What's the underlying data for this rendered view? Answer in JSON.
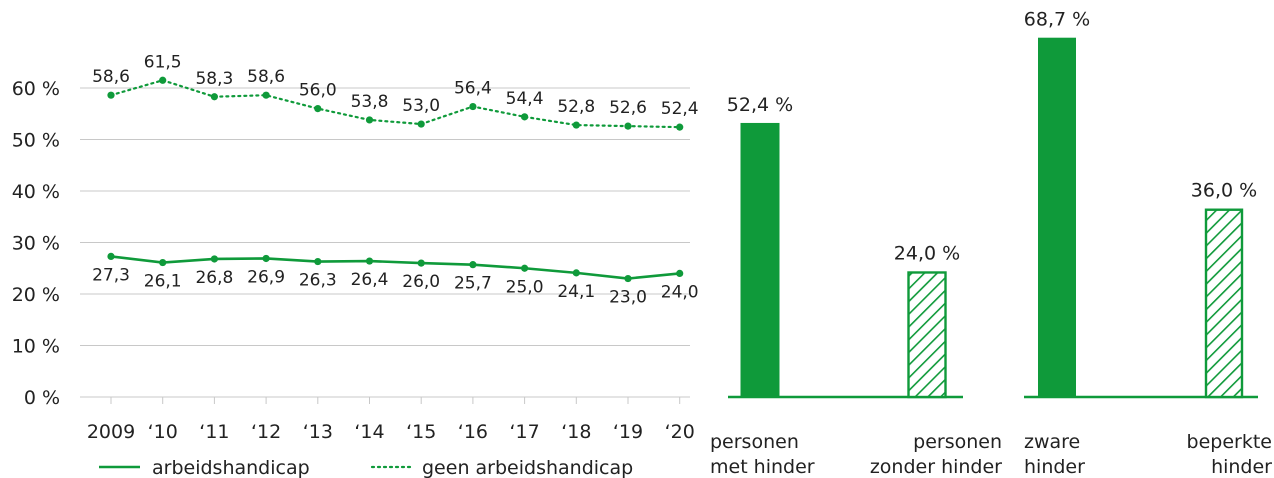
{
  "colors": {
    "primary": "#0f9a3a",
    "grid": "#c8c8c8",
    "text": "#222222"
  },
  "chart_data": [
    {
      "type": "line",
      "x_labels": [
        "2009",
        "‘10",
        "‘11",
        "‘12",
        "‘13",
        "‘14",
        "‘15",
        "‘16",
        "‘17",
        "‘18",
        "‘19",
        "‘20"
      ],
      "y_ticks": [
        "0 %",
        "10 %",
        "20 %",
        "30 %",
        "40 %",
        "50 %",
        "60 %"
      ],
      "ylim": [
        0,
        60
      ],
      "grid": true,
      "legend_position": "bottom",
      "series": [
        {
          "name": "arbeidshandicap",
          "style": "solid",
          "values": [
            27.3,
            26.1,
            26.8,
            26.9,
            26.3,
            26.4,
            26.0,
            25.7,
            25.0,
            24.1,
            23.0,
            24.0
          ],
          "labels": [
            "27,3",
            "26,1",
            "26,8",
            "26,9",
            "26,3",
            "26,4",
            "26,0",
            "25,7",
            "25,0",
            "24,1",
            "23,0",
            "24,0"
          ]
        },
        {
          "name": "geen arbeidshandicap",
          "style": "dotted",
          "values": [
            58.6,
            61.5,
            58.3,
            58.6,
            56.0,
            53.8,
            53.0,
            56.4,
            54.4,
            52.8,
            52.6,
            52.4
          ],
          "labels": [
            "58,6",
            "61,5",
            "58,3",
            "58,6",
            "56,0",
            "53,8",
            "53,0",
            "56,4",
            "54,4",
            "52,8",
            "52,6",
            "52,4"
          ]
        }
      ]
    },
    {
      "type": "bar",
      "categories": [
        {
          "lines": [
            "personen",
            "met hinder"
          ],
          "value": 52.4,
          "label": "52,4 %",
          "fill": "solid"
        },
        {
          "lines": [
            "personen",
            "zonder hinder"
          ],
          "value": 24.0,
          "label": "24,0 %",
          "fill": "hatched"
        }
      ]
    },
    {
      "type": "bar",
      "categories": [
        {
          "lines": [
            "zware",
            "hinder"
          ],
          "value": 68.7,
          "label": "68,7 %",
          "fill": "solid"
        },
        {
          "lines": [
            "beperkte",
            "hinder"
          ],
          "value": 36.0,
          "label": "36,0 %",
          "fill": "hatched"
        }
      ]
    }
  ]
}
